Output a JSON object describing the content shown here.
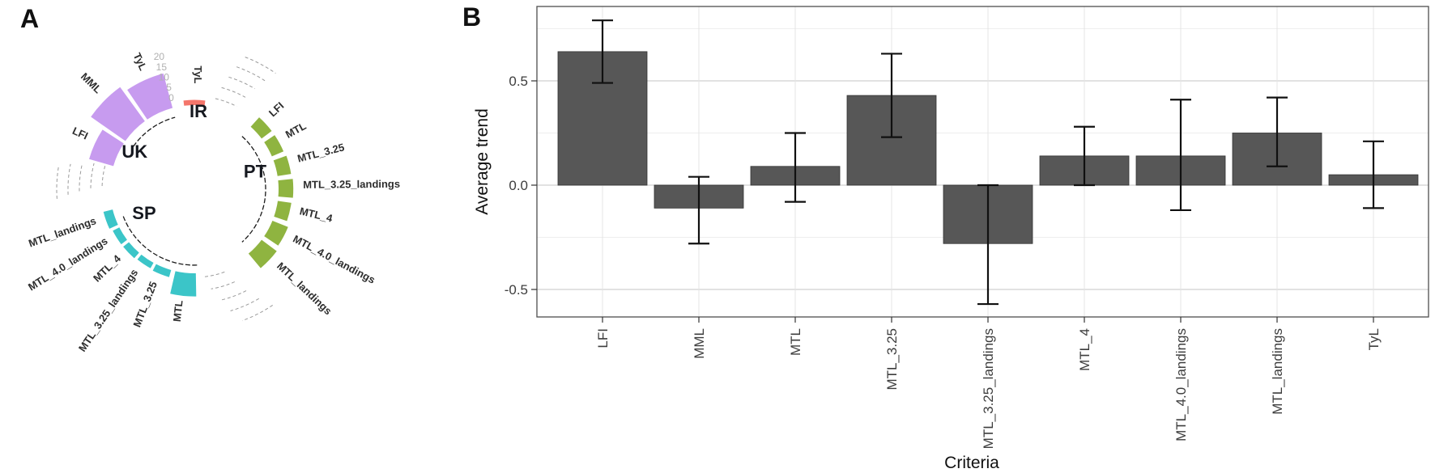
{
  "figure": {
    "panel_a_label": "A",
    "panel_b_label": "B",
    "background": "#ffffff"
  },
  "chart_data": [
    {
      "type": "circular_bar",
      "description": "Circular barplot of criteria values per country sector",
      "value_scale": [
        0,
        20
      ],
      "axis": {
        "ticks": [
          0,
          5,
          10,
          15,
          20
        ],
        "angle": 347,
        "color": "#b0b0b0"
      },
      "groups": [
        {
          "name": "IR",
          "color": "#F4766B",
          "label_pos": {
            "angle": 3,
            "r": 96
          },
          "bracket": null,
          "bars": [
            {
              "label": "TyL",
              "angle_start": 353,
              "angle_end": 367,
              "value": 2.5,
              "label_offset": 20
            }
          ]
        },
        {
          "name": "PT",
          "color": "#8FB440",
          "label_pos": {
            "angle": 74,
            "r": 78
          },
          "bracket": {
            "start": 42,
            "end": 138,
            "r": 88
          },
          "bars": [
            {
              "label": "LFI",
              "angle_start": 42,
              "angle_end": 53,
              "value": 6
            },
            {
              "label": "MTL",
              "angle_start": 56,
              "angle_end": 67,
              "value": 6
            },
            {
              "label": "MTL_3.25",
              "angle_start": 70,
              "angle_end": 81,
              "value": 6.5
            },
            {
              "label": "MTL_3.25_landings",
              "angle_start": 84,
              "angle_end": 95,
              "value": 7
            },
            {
              "label": "MTL_4",
              "angle_start": 98,
              "angle_end": 109,
              "value": 6.5
            },
            {
              "label": "MTL_4.0_landings",
              "angle_start": 112,
              "angle_end": 124,
              "value": 8
            },
            {
              "label": "MTL_landings",
              "angle_start": 127,
              "angle_end": 140,
              "value": 9
            }
          ]
        },
        {
          "name": "SP",
          "color": "#3BC5C8",
          "label_pos": {
            "angle": 244,
            "r": 69
          },
          "bracket": {
            "start": 178,
            "end": 250,
            "r": 94
          },
          "bars": [
            {
              "label": "MTL",
              "angle_start": 179,
              "angle_end": 193,
              "value": 11,
              "label_offset": 6
            },
            {
              "label": "MTL_3.25",
              "angle_start": 196,
              "angle_end": 207,
              "value": 3.5
            },
            {
              "label": "MTL_3.25_landings",
              "angle_start": 209,
              "angle_end": 219,
              "value": 3
            },
            {
              "label": "MTL_4",
              "angle_start": 221,
              "angle_end": 231,
              "value": 3.5
            },
            {
              "label": "MTL_4.0_landings",
              "angle_start": 233,
              "angle_end": 243,
              "value": 3.5
            },
            {
              "label": "MTL_landings",
              "angle_start": 245,
              "angle_end": 256,
              "value": 4.5
            }
          ]
        },
        {
          "name": "UK",
          "color": "#C79BEF",
          "label_pos": {
            "angle": 302,
            "r": 87
          },
          "bracket": {
            "start": 305,
            "end": 345,
            "r": 92
          },
          "bars": [
            {
              "label": "LFI",
              "angle_start": 286,
              "angle_end": 303,
              "value": 12
            },
            {
              "label": "MML",
              "angle_start": 305,
              "angle_end": 324,
              "value": 20
            },
            {
              "label": "TyL",
              "angle_start": 326,
              "angle_end": 345,
              "value": 17
            }
          ]
        }
      ],
      "empty_ticks": [
        {
          "count": 5,
          "angle_start": 20,
          "angle_step": 2,
          "r_start": 115,
          "r_step": 15
        },
        {
          "count": 5,
          "angle_start": 167,
          "angle_step": -3.5,
          "r_start": 109,
          "r_step": 16
        },
        {
          "count": 5,
          "angle_start": 273,
          "angle_step": 1.5,
          "r_start": 170,
          "r_step": -14
        }
      ]
    },
    {
      "type": "bar",
      "categories": [
        "LFI",
        "MML",
        "MTL",
        "MTL_3.25",
        "MTL_3.25_landings",
        "MTL_4",
        "MTL_4.0_landings",
        "MTL_landings",
        "TyL"
      ],
      "values": [
        0.64,
        -0.11,
        0.09,
        0.43,
        -0.28,
        0.14,
        0.14,
        0.25,
        0.05
      ],
      "error_low": [
        0.49,
        -0.28,
        -0.08,
        0.23,
        -0.57,
        0.0,
        -0.12,
        0.09,
        -0.11
      ],
      "error_high": [
        0.79,
        0.04,
        0.25,
        0.63,
        0.0,
        0.28,
        0.41,
        0.42,
        0.21
      ],
      "xlabel": "Criteria",
      "ylabel": "Average trend",
      "y_ticks": [
        0.5,
        0.0,
        -0.5
      ],
      "y_tick_labels": [
        "0.5",
        "0.0",
        "-0.5"
      ],
      "y_minor": [
        0.75,
        0.25,
        -0.25
      ],
      "ylim": [
        -0.63,
        0.86
      ],
      "bar_color": "#575757",
      "bar_edge_color": "#333333",
      "grid": true,
      "legend_position": "none"
    }
  ]
}
